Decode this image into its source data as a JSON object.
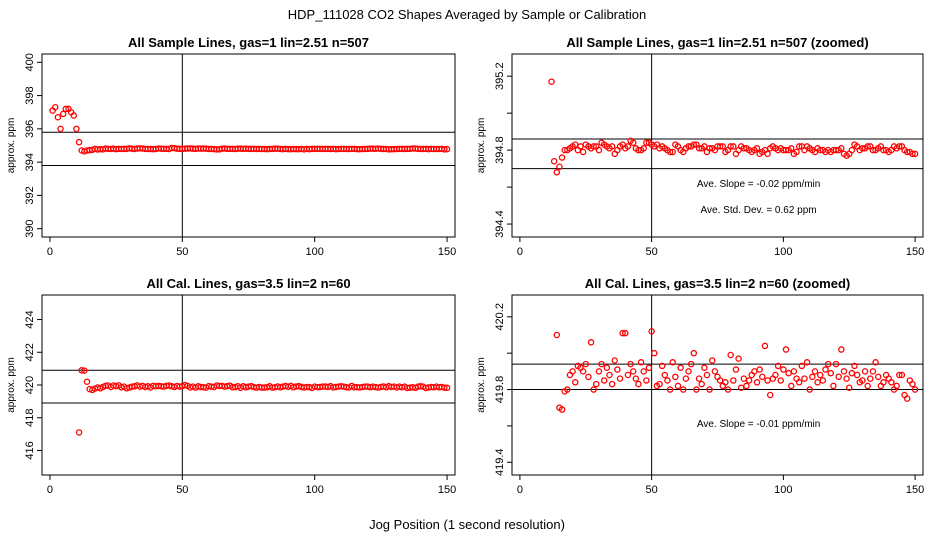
{
  "figure": {
    "title": "HDP_111028  CO2 Shapes Averaged by Sample or Calibration",
    "xlabel": "Jog Position (1 second resolution)"
  },
  "colors": {
    "points": "#ff0000",
    "lines": "#000000",
    "background": "#ffffff"
  },
  "chart_data": [
    {
      "type": "scatter",
      "title": "All Sample Lines, gas=1 lin=2.51 n=507",
      "ylabel": "approx. ppm",
      "xlim": [
        -3,
        153
      ],
      "ylim": [
        389.5,
        400.5
      ],
      "x_ticks": [
        0,
        50,
        100,
        150
      ],
      "y_ticks": [
        390,
        392,
        394,
        396,
        398,
        400
      ],
      "hlines": [
        393.8,
        395.8
      ],
      "vline": 50,
      "annotations": [],
      "x": [
        1,
        2,
        3,
        4,
        5,
        6,
        7,
        8,
        9,
        10,
        11,
        12,
        13,
        14,
        15,
        16,
        17,
        18,
        19,
        20,
        21,
        22,
        23,
        24,
        25,
        26,
        27,
        28,
        29,
        30,
        31,
        32,
        33,
        34,
        35,
        36,
        37,
        38,
        39,
        40,
        41,
        42,
        43,
        44,
        45,
        46,
        47,
        48,
        49,
        50,
        51,
        52,
        53,
        54,
        55,
        56,
        57,
        58,
        59,
        60,
        61,
        62,
        63,
        64,
        65,
        66,
        67,
        68,
        69,
        70,
        71,
        72,
        73,
        74,
        75,
        76,
        77,
        78,
        79,
        80,
        81,
        82,
        83,
        84,
        85,
        86,
        87,
        88,
        89,
        90,
        91,
        92,
        93,
        94,
        95,
        96,
        97,
        98,
        99,
        100,
        101,
        102,
        103,
        104,
        105,
        106,
        107,
        108,
        109,
        110,
        111,
        112,
        113,
        114,
        115,
        116,
        117,
        118,
        119,
        120,
        121,
        122,
        123,
        124,
        125,
        126,
        127,
        128,
        129,
        130,
        131,
        132,
        133,
        134,
        135,
        136,
        137,
        138,
        139,
        140,
        141,
        142,
        143,
        144,
        145,
        146,
        147,
        148,
        149,
        150
      ],
      "y": [
        397.1,
        397.3,
        396.7,
        396.0,
        396.9,
        397.2,
        397.2,
        397.0,
        396.8,
        396.0,
        395.2,
        394.7,
        394.65,
        394.7,
        394.72,
        394.74,
        394.8,
        394.76,
        394.78,
        394.77,
        394.82,
        394.8,
        394.79,
        394.81,
        394.78,
        394.8,
        394.79,
        394.8,
        394.8,
        394.83,
        394.81,
        394.79,
        394.82,
        394.83,
        394.82,
        394.8,
        394.79,
        394.79,
        394.78,
        394.79,
        394.82,
        394.81,
        394.8,
        394.8,
        394.79,
        394.85,
        394.84,
        394.81,
        394.8,
        394.8,
        394.81,
        394.82,
        394.83,
        394.81,
        394.8,
        394.82,
        394.81,
        394.82,
        394.81,
        394.79,
        394.8,
        394.78,
        394.77,
        394.77,
        394.81,
        394.82,
        394.8,
        394.8,
        394.8,
        394.79,
        394.81,
        394.81,
        394.8,
        394.81,
        394.8,
        394.8,
        394.8,
        394.79,
        394.8,
        394.79,
        394.79,
        394.78,
        394.79,
        394.8,
        394.81,
        394.81,
        394.79,
        394.78,
        394.8,
        394.78,
        394.78,
        394.79,
        394.78,
        394.78,
        394.8,
        394.77,
        394.8,
        394.78,
        394.8,
        394.8,
        394.8,
        394.8,
        394.79,
        394.8,
        394.8,
        394.79,
        394.8,
        394.78,
        394.79,
        394.8,
        394.8,
        394.79,
        394.79,
        394.8,
        394.8,
        394.78,
        394.78,
        394.79,
        394.79,
        394.8,
        394.81,
        394.81,
        394.8,
        394.82,
        394.8,
        394.79,
        394.79,
        394.77,
        394.78,
        394.78,
        394.79,
        394.8,
        394.8,
        394.79,
        394.8,
        394.8,
        394.82,
        394.82,
        394.8,
        394.8,
        394.79,
        394.8,
        394.78,
        394.8,
        394.79,
        394.79,
        394.79,
        394.8,
        394.77,
        394.78
      ]
    },
    {
      "type": "scatter",
      "title": "All Sample Lines, gas=1 lin=2.51 n=507 (zoomed)",
      "ylabel": "approx. ppm",
      "xlim": [
        -3,
        153
      ],
      "ylim": [
        394.33,
        395.32
      ],
      "x_ticks": [
        0,
        50,
        100,
        150
      ],
      "y_ticks": [
        394.4,
        394.6,
        394.8,
        395.0,
        395.2
      ],
      "y_tick_labels": [
        "394.4",
        "",
        "394.8",
        "",
        "395.2"
      ],
      "hlines": [
        394.7,
        394.86
      ],
      "vline": 50,
      "annotations": [
        "Ave. Slope =  -0.02  ppm/min",
        "Ave. Std. Dev. =  0.62  ppm"
      ],
      "x": [
        12,
        13,
        14,
        15,
        16,
        17,
        18,
        19,
        20,
        21,
        22,
        23,
        24,
        25,
        26,
        27,
        28,
        29,
        30,
        31,
        32,
        33,
        34,
        35,
        36,
        37,
        38,
        39,
        40,
        41,
        42,
        43,
        44,
        45,
        46,
        47,
        48,
        49,
        50,
        51,
        52,
        53,
        54,
        55,
        56,
        57,
        58,
        59,
        60,
        61,
        62,
        63,
        64,
        65,
        66,
        67,
        68,
        69,
        70,
        71,
        72,
        73,
        74,
        75,
        76,
        77,
        78,
        79,
        80,
        81,
        82,
        83,
        84,
        85,
        86,
        87,
        88,
        89,
        90,
        91,
        92,
        93,
        94,
        95,
        96,
        97,
        98,
        99,
        100,
        101,
        102,
        103,
        104,
        105,
        106,
        107,
        108,
        109,
        110,
        111,
        112,
        113,
        114,
        115,
        116,
        117,
        118,
        119,
        120,
        121,
        122,
        123,
        124,
        125,
        126,
        127,
        128,
        129,
        130,
        131,
        132,
        133,
        134,
        135,
        136,
        137,
        138,
        139,
        140,
        141,
        142,
        143,
        144,
        145,
        146,
        147,
        148,
        149,
        150
      ],
      "y": [
        395.17,
        394.74,
        394.68,
        394.71,
        394.76,
        394.8,
        394.8,
        394.81,
        394.82,
        394.83,
        394.8,
        394.82,
        394.79,
        394.83,
        394.82,
        394.81,
        394.82,
        394.82,
        394.8,
        394.84,
        394.83,
        394.82,
        394.81,
        394.82,
        394.78,
        394.8,
        394.82,
        394.83,
        394.81,
        394.82,
        394.85,
        394.84,
        394.81,
        394.8,
        394.8,
        394.81,
        394.84,
        394.84,
        394.83,
        394.82,
        394.83,
        394.81,
        394.82,
        394.81,
        394.8,
        394.79,
        394.79,
        394.83,
        394.82,
        394.8,
        394.79,
        394.81,
        394.82,
        394.82,
        394.83,
        394.83,
        394.81,
        394.81,
        394.82,
        394.79,
        394.81,
        394.81,
        394.8,
        394.82,
        394.82,
        394.82,
        394.79,
        394.8,
        394.82,
        394.82,
        394.78,
        394.8,
        394.82,
        394.81,
        394.81,
        394.8,
        394.79,
        394.8,
        394.81,
        394.78,
        394.79,
        394.8,
        394.78,
        394.81,
        394.82,
        394.81,
        394.8,
        394.81,
        394.8,
        394.8,
        394.8,
        394.81,
        394.78,
        394.79,
        394.82,
        394.82,
        394.8,
        394.82,
        394.81,
        394.8,
        394.79,
        394.81,
        394.8,
        394.8,
        394.79,
        394.8,
        394.79,
        394.8,
        394.8,
        394.8,
        394.81,
        394.78,
        394.77,
        394.78,
        394.8,
        394.83,
        394.82,
        394.8,
        394.81,
        394.81,
        394.82,
        394.82,
        394.8,
        394.8,
        394.81,
        394.82,
        394.8,
        394.8,
        394.79,
        394.8,
        394.82,
        394.81,
        394.82,
        394.82,
        394.8,
        394.79,
        394.79,
        394.78,
        394.78
      ]
    },
    {
      "type": "scatter",
      "title": "All Cal. Lines, gas=3.5 lin=2 n=60",
      "ylabel": "approx. ppm",
      "xlim": [
        -3,
        153
      ],
      "ylim": [
        414.5,
        425.5
      ],
      "x_ticks": [
        0,
        50,
        100,
        150
      ],
      "y_ticks": [
        416,
        418,
        420,
        422,
        424
      ],
      "hlines": [
        418.9,
        420.9
      ],
      "vline": 50,
      "annotations": [],
      "x": [
        11,
        12,
        13,
        14,
        15,
        16,
        17,
        18,
        19,
        20,
        21,
        22,
        23,
        24,
        25,
        26,
        27,
        28,
        29,
        30,
        31,
        32,
        33,
        34,
        35,
        36,
        37,
        38,
        39,
        40,
        41,
        42,
        43,
        44,
        45,
        46,
        47,
        48,
        49,
        50,
        51,
        52,
        53,
        54,
        55,
        56,
        57,
        58,
        59,
        60,
        61,
        62,
        63,
        64,
        65,
        66,
        67,
        68,
        69,
        70,
        71,
        72,
        73,
        74,
        75,
        76,
        77,
        78,
        79,
        80,
        81,
        82,
        83,
        84,
        85,
        86,
        87,
        88,
        89,
        90,
        91,
        92,
        93,
        94,
        95,
        96,
        97,
        98,
        99,
        100,
        101,
        102,
        103,
        104,
        105,
        106,
        107,
        108,
        109,
        110,
        111,
        112,
        113,
        114,
        115,
        116,
        117,
        118,
        119,
        120,
        121,
        122,
        123,
        124,
        125,
        126,
        127,
        128,
        129,
        130,
        131,
        132,
        133,
        134,
        135,
        136,
        137,
        138,
        139,
        140,
        141,
        142,
        143,
        144,
        145,
        146,
        147,
        148,
        149,
        150
      ],
      "y": [
        417.1,
        420.9,
        420.88,
        420.2,
        419.75,
        419.7,
        419.78,
        419.85,
        419.8,
        419.88,
        419.95,
        419.97,
        419.88,
        419.97,
        419.93,
        419.98,
        419.86,
        419.9,
        419.8,
        419.85,
        419.9,
        419.92,
        419.98,
        419.9,
        419.95,
        419.88,
        419.92,
        419.85,
        419.95,
        419.92,
        419.95,
        419.92,
        419.9,
        419.95,
        419.97,
        419.92,
        419.88,
        419.94,
        419.9,
        419.93,
        420.0,
        419.95,
        419.85,
        419.9,
        419.84,
        419.92,
        419.88,
        419.86,
        419.84,
        419.93,
        419.9,
        419.88,
        419.97,
        419.94,
        419.95,
        419.9,
        419.93,
        419.96,
        419.86,
        419.87,
        419.92,
        419.83,
        419.92,
        419.86,
        419.9,
        419.93,
        419.87,
        419.84,
        419.88,
        419.84,
        419.85,
        419.86,
        419.92,
        419.84,
        419.86,
        419.91,
        419.86,
        419.9,
        419.94,
        419.89,
        419.95,
        419.86,
        419.91,
        419.93,
        419.88,
        419.85,
        419.88,
        419.87,
        419.82,
        419.9,
        419.87,
        419.88,
        419.9,
        419.91,
        419.88,
        419.93,
        419.85,
        419.88,
        419.9,
        419.92,
        419.9,
        419.86,
        419.85,
        419.94,
        419.86,
        419.87,
        419.85,
        419.88,
        419.9,
        419.9,
        419.86,
        419.9,
        419.87,
        419.84,
        419.88,
        419.91,
        419.86,
        419.93,
        419.88,
        419.9,
        419.85,
        419.9,
        419.86,
        419.9,
        419.82,
        419.84,
        419.86,
        419.83,
        419.9,
        419.92,
        419.9,
        419.82,
        419.85,
        419.88,
        419.86,
        419.9,
        419.86,
        419.88,
        419.84,
        419.83
      ]
    },
    {
      "type": "scatter",
      "title": "All Cal. Lines, gas=3.5 lin=2 n=60 (zoomed)",
      "ylabel": "approx. ppm",
      "xlim": [
        -3,
        153
      ],
      "ylim": [
        419.33,
        420.32
      ],
      "x_ticks": [
        0,
        50,
        100,
        150
      ],
      "y_ticks": [
        419.4,
        419.6,
        419.8,
        420.0,
        420.2
      ],
      "y_tick_labels": [
        "419.4",
        "",
        "419.8",
        "",
        "420.2"
      ],
      "hlines": [
        419.8,
        419.94
      ],
      "vline": 50,
      "annotations": [
        "Ave. Slope =  -0.01  ppm/min"
      ],
      "x": [
        14,
        15,
        16,
        17,
        18,
        19,
        20,
        21,
        22,
        23,
        24,
        25,
        26,
        27,
        28,
        29,
        30,
        31,
        32,
        33,
        34,
        35,
        36,
        37,
        38,
        39,
        40,
        41,
        42,
        43,
        44,
        45,
        46,
        47,
        48,
        49,
        50,
        51,
        52,
        53,
        54,
        55,
        56,
        57,
        58,
        59,
        60,
        61,
        62,
        63,
        64,
        65,
        66,
        67,
        68,
        69,
        70,
        71,
        72,
        73,
        74,
        75,
        76,
        77,
        78,
        79,
        80,
        81,
        82,
        83,
        84,
        85,
        86,
        87,
        88,
        89,
        90,
        91,
        92,
        93,
        94,
        95,
        96,
        97,
        98,
        99,
        100,
        101,
        102,
        103,
        104,
        105,
        106,
        107,
        108,
        109,
        110,
        111,
        112,
        113,
        114,
        115,
        116,
        117,
        118,
        119,
        120,
        121,
        122,
        123,
        124,
        125,
        126,
        127,
        128,
        129,
        130,
        131,
        132,
        133,
        134,
        135,
        136,
        137,
        138,
        139,
        140,
        141,
        142,
        143,
        144,
        145,
        146,
        147,
        148,
        149,
        150
      ],
      "y": [
        420.1,
        419.7,
        419.69,
        419.79,
        419.8,
        419.88,
        419.9,
        419.84,
        419.93,
        419.92,
        419.9,
        419.94,
        419.87,
        420.06,
        419.8,
        419.83,
        419.9,
        419.94,
        419.85,
        419.92,
        419.88,
        419.83,
        419.96,
        419.91,
        419.86,
        420.11,
        420.11,
        419.88,
        419.94,
        419.9,
        419.86,
        419.83,
        419.95,
        419.9,
        419.85,
        419.92,
        420.12,
        420.0,
        419.82,
        419.83,
        419.93,
        419.88,
        419.85,
        419.8,
        419.95,
        419.87,
        419.82,
        419.92,
        419.8,
        419.86,
        419.9,
        419.94,
        420.0,
        419.8,
        419.86,
        419.83,
        419.92,
        419.88,
        419.8,
        419.96,
        419.9,
        419.87,
        419.85,
        419.82,
        419.84,
        419.8,
        419.99,
        419.85,
        419.91,
        419.97,
        419.81,
        419.86,
        419.82,
        419.85,
        419.88,
        419.9,
        419.84,
        419.91,
        419.87,
        420.04,
        419.85,
        419.77,
        419.86,
        419.88,
        419.93,
        419.85,
        419.91,
        420.02,
        419.89,
        419.82,
        419.9,
        419.86,
        419.84,
        419.93,
        419.86,
        419.95,
        419.8,
        419.87,
        419.9,
        419.84,
        419.88,
        419.85,
        419.91,
        419.94,
        419.89,
        419.82,
        419.94,
        419.87,
        420.02,
        419.9,
        419.86,
        419.81,
        419.89,
        419.93,
        419.88,
        419.84,
        419.85,
        419.9,
        419.82,
        419.86,
        419.9,
        419.95,
        419.87,
        419.82,
        419.84,
        419.88,
        419.86,
        419.84,
        419.8,
        419.82,
        419.88,
        419.88,
        419.77,
        419.75,
        419.85,
        419.83,
        419.8
      ]
    }
  ]
}
